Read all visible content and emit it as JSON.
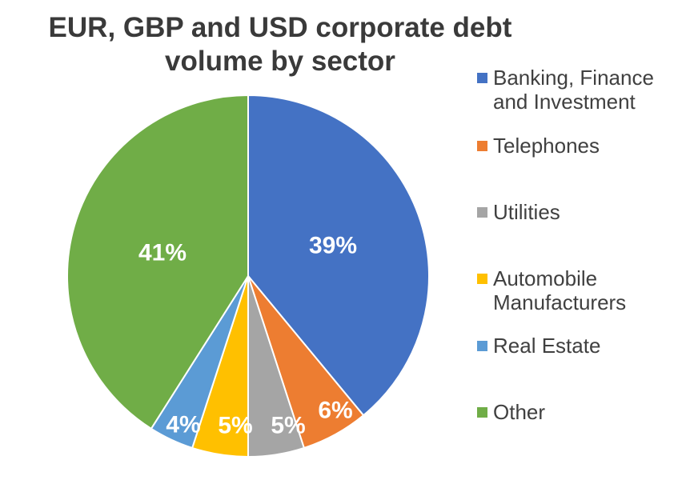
{
  "chart_data": {
    "type": "pie",
    "title": [
      "EUR, GBP and USD corporate debt",
      "volume by sector"
    ],
    "slices": [
      {
        "name": "Banking, Finance and Investment",
        "legend_lines": [
          "Banking, Finance",
          "and Investment"
        ],
        "value": 39,
        "label": "39%",
        "color": "#4472C4"
      },
      {
        "name": "Telephones",
        "legend_lines": [
          "Telephones"
        ],
        "value": 6,
        "label": "6%",
        "color": "#ED7D31"
      },
      {
        "name": "Utilities",
        "legend_lines": [
          "Utilities"
        ],
        "value": 5,
        "label": "5%",
        "color": "#A5A5A5"
      },
      {
        "name": "Automobile Manufacturers",
        "legend_lines": [
          "Automobile",
          "Manufacturers"
        ],
        "value": 5,
        "label": "5%",
        "color": "#FFC000"
      },
      {
        "name": "Real Estate",
        "legend_lines": [
          "Real Estate"
        ],
        "value": 4,
        "label": "4%",
        "color": "#5B9BD5"
      },
      {
        "name": "Other",
        "legend_lines": [
          "Other"
        ],
        "value": 41,
        "label": "41%",
        "color": "#70AD47"
      }
    ],
    "legend_position": "right",
    "start_angle": "12 o'clock",
    "direction": "clockwise"
  }
}
